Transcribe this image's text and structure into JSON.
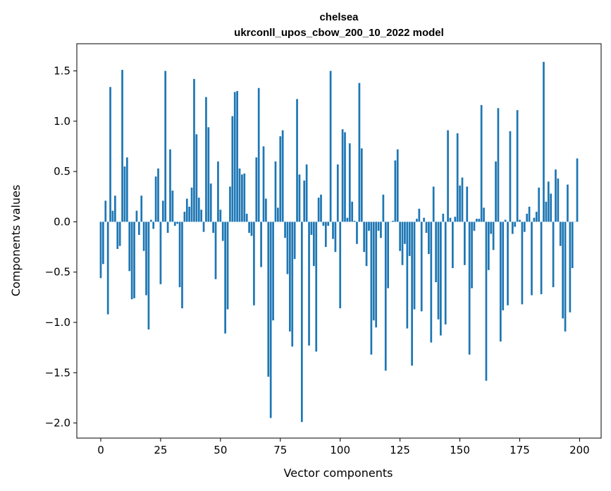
{
  "chart_data": {
    "type": "bar",
    "title": "chelsea",
    "subtitle": "ukrconll_upos_cbow_200_10_2022 model",
    "xlabel": "Vector components",
    "ylabel": "Components values",
    "xlim": [
      -10,
      209
    ],
    "ylim": [
      -2.15,
      1.77
    ],
    "xticks": [
      0,
      25,
      50,
      75,
      100,
      125,
      150,
      175,
      200
    ],
    "yticks": [
      -2.0,
      -1.5,
      -1.0,
      -0.5,
      0.0,
      0.5,
      1.0,
      1.5
    ],
    "ytick_labels": [
      "−2.0",
      "−1.5",
      "−1.0",
      "−0.5",
      "0.0",
      "0.5",
      "1.0",
      "1.5"
    ],
    "bar_color": "#1f77b4",
    "grid": false,
    "values": [
      -0.56,
      -0.42,
      0.21,
      -0.92,
      1.34,
      0.11,
      0.26,
      -0.27,
      -0.24,
      1.51,
      0.55,
      0.64,
      -0.49,
      -0.77,
      -0.76,
      0.11,
      -0.13,
      0.26,
      -0.29,
      -0.73,
      -1.07,
      0.02,
      -0.07,
      0.45,
      0.53,
      -0.62,
      0.21,
      1.5,
      -0.11,
      0.72,
      0.31,
      -0.04,
      -0.02,
      -0.65,
      -0.86,
      0.1,
      0.23,
      0.15,
      0.34,
      1.42,
      0.87,
      0.24,
      0.12,
      -0.1,
      1.24,
      0.94,
      0.38,
      -0.11,
      -0.57,
      0.6,
      0.12,
      -0.19,
      -1.11,
      -0.87,
      0.35,
      1.05,
      1.29,
      1.3,
      0.53,
      0.47,
      0.48,
      0.08,
      -0.11,
      -0.14,
      -0.83,
      0.64,
      1.33,
      -0.45,
      0.75,
      0.23,
      -1.54,
      -1.95,
      -0.98,
      0.6,
      0.14,
      0.85,
      0.91,
      -0.16,
      -0.52,
      -1.09,
      -1.24,
      -0.37,
      1.22,
      0.47,
      -1.99,
      0.41,
      0.57,
      -1.23,
      -0.13,
      -0.44,
      -1.29,
      0.24,
      0.27,
      -0.04,
      -0.25,
      -0.04,
      1.5,
      -0.17,
      -0.3,
      0.57,
      -0.86,
      0.92,
      0.89,
      0.04,
      0.78,
      0.2,
      0.01,
      -0.22,
      1.38,
      0.73,
      -0.3,
      -0.44,
      -0.09,
      -1.32,
      -0.98,
      -1.05,
      -0.09,
      -0.16,
      0.27,
      -1.48,
      -0.66,
      0.0,
      0.01,
      0.61,
      0.72,
      -0.29,
      -0.43,
      -0.22,
      -1.06,
      -0.34,
      -1.43,
      -0.87,
      0.03,
      0.13,
      -0.89,
      0.04,
      -0.11,
      -0.32,
      -1.2,
      0.35,
      -0.6,
      -0.97,
      -1.13,
      0.08,
      -1.02,
      0.91,
      0.04,
      -0.46,
      0.05,
      0.88,
      0.36,
      0.44,
      -0.43,
      0.35,
      -1.32,
      -0.66,
      -0.09,
      0.03,
      0.03,
      1.16,
      0.14,
      -1.58,
      -0.48,
      -0.12,
      -0.28,
      0.6,
      1.13,
      -1.19,
      -0.88,
      0.02,
      -0.83,
      0.9,
      -0.12,
      -0.05,
      1.11,
      0.02,
      -0.82,
      -0.1,
      0.08,
      0.15,
      -0.73,
      0.04,
      0.1,
      0.34,
      -0.72,
      1.59,
      0.2,
      0.4,
      0.28,
      -0.65,
      0.52,
      0.43,
      -0.24,
      -0.96,
      -1.09,
      0.37,
      -0.9,
      -0.46,
      0.0,
      0.63
    ]
  }
}
